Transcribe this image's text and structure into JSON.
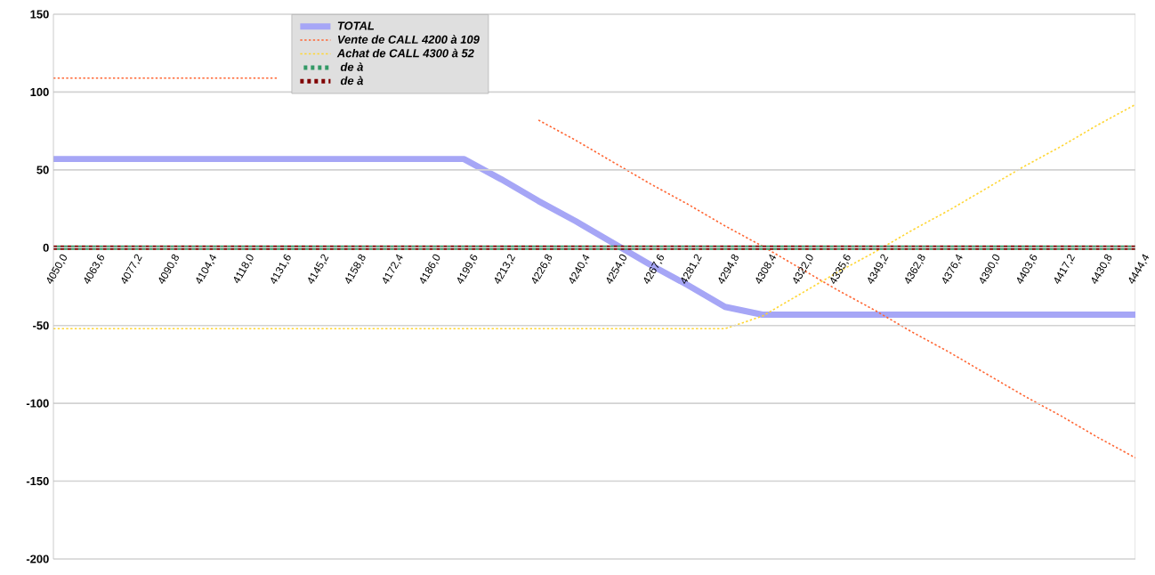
{
  "chart_data": {
    "type": "line",
    "categories": [
      "4050,0",
      "4063,6",
      "4077,2",
      "4090,8",
      "4104,4",
      "4118,0",
      "4131,6",
      "4145,2",
      "4158,8",
      "4172,4",
      "4186,0",
      "4199,6",
      "4213,2",
      "4226,8",
      "4240,4",
      "4254,0",
      "4267,6",
      "4281,2",
      "4294,8",
      "4308,4",
      "4322,0",
      "4335,6",
      "4349,2",
      "4362,8",
      "4376,4",
      "4390,0",
      "4403,6",
      "4417,2",
      "4430,8",
      "4444,4"
    ],
    "series": [
      {
        "name": "TOTAL",
        "color": "#a6a6f6",
        "line_style": "solid",
        "values": [
          57,
          57,
          57,
          57,
          57,
          57,
          57,
          57,
          57,
          57,
          57,
          57,
          44,
          30,
          17,
          3,
          -11,
          -24,
          -38,
          -43,
          -43,
          -43,
          -43,
          -43,
          -43,
          -43,
          -43,
          -43,
          -43,
          -43
        ]
      },
      {
        "name": "Vente de CALL 4200 à 109",
        "color": "#ff6633",
        "line_style": "dotted",
        "values": [
          109,
          109,
          109,
          109,
          109,
          109,
          109,
          null,
          null,
          null,
          null,
          null,
          null,
          82,
          69,
          55,
          41,
          28,
          14,
          1,
          -13,
          -27,
          -40,
          -54,
          -67,
          -81,
          -95,
          -108,
          -122,
          -135
        ]
      },
      {
        "name": "Achat de CALL 4300 à 52",
        "color": "#ffd633",
        "line_style": "dotted",
        "values": [
          -52,
          -52,
          -52,
          -52,
          -52,
          -52,
          -52,
          -52,
          -52,
          -52,
          -52,
          -52,
          -52,
          -52,
          -52,
          -52,
          -52,
          -52,
          -52,
          -44,
          -30,
          -16,
          -3,
          11,
          24,
          38,
          52,
          65,
          79,
          92
        ]
      },
      {
        "name": " de  à",
        "color": "#339966",
        "line_style": "dotted",
        "values": [
          0,
          0,
          0,
          0,
          0,
          0,
          0,
          0,
          0,
          0,
          0,
          0,
          0,
          0,
          0,
          0,
          0,
          0,
          0,
          0,
          0,
          0,
          0,
          0,
          0,
          0,
          0,
          0,
          0,
          0
        ]
      },
      {
        "name": " de  à",
        "color": "#800000",
        "line_style": "dotted",
        "values": [
          0,
          0,
          0,
          0,
          0,
          0,
          0,
          0,
          0,
          0,
          0,
          0,
          0,
          0,
          0,
          0,
          0,
          0,
          0,
          0,
          0,
          0,
          0,
          0,
          0,
          0,
          0,
          0,
          0,
          0
        ]
      }
    ],
    "ylim": [
      -200,
      150
    ],
    "yticks": [
      -200,
      -150,
      -100,
      -50,
      0,
      50,
      100,
      150
    ],
    "grid": "y",
    "legend": "top",
    "marker": "none"
  }
}
